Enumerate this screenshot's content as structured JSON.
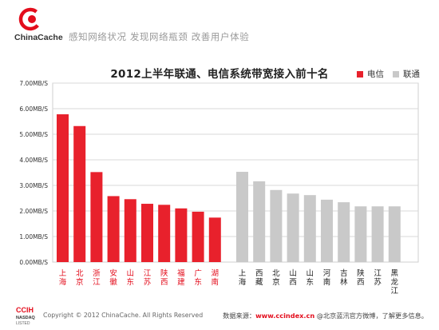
{
  "brand": {
    "name": "ChinaCache",
    "tagline": "感知网络状况 发现网络瓶颈 改善用户体验"
  },
  "legend": [
    {
      "label": "电信",
      "color": "#e8212c"
    },
    {
      "label": "联通",
      "color": "#c9c9c9"
    }
  ],
  "footer": {
    "mark_top": "CCIH",
    "mark_mid": "NASDAQ",
    "mark_bottom": "LISTED",
    "copyright": "Copyright © 2012 ChinaCache. All Rights Reserved",
    "source_prefix": "数据来源：",
    "source_url": "www.ccindex.cn",
    "source_suffix": " @北京蓝汛官方微博，了解更多信息。"
  },
  "colors": {
    "telecom": "#e8212c",
    "unicom": "#c9c9c9",
    "grid": "#dadada",
    "telecom_label": "#e30d1c",
    "unicom_label": "#222222"
  },
  "chart_data": {
    "type": "bar",
    "title": "2012上半年联通、电信系统带宽接入前十名",
    "ylim": [
      0,
      7
    ],
    "yticks": [
      "0.00MB/S",
      "1.00MB/S",
      "2.00MB/S",
      "3.00MB/S",
      "4.00MB/S",
      "5.00MB/S",
      "6.00MB/S",
      "7.00MB/S"
    ],
    "grid": true,
    "legend_position": "top-right",
    "series": [
      {
        "name": "电信",
        "color": "#e8212c",
        "categories": [
          "上海",
          "北京",
          "浙江",
          "安徽",
          "山东",
          "江苏",
          "陕西",
          "福建",
          "广东",
          "湖南"
        ],
        "values": [
          5.78,
          5.32,
          3.52,
          2.58,
          2.46,
          2.28,
          2.24,
          2.1,
          1.97,
          1.74
        ]
      },
      {
        "name": "联通",
        "color": "#c9c9c9",
        "categories": [
          "上海",
          "西藏",
          "北京",
          "山西",
          "山东",
          "河南",
          "吉林",
          "陕西",
          "江苏",
          "黑龙江"
        ],
        "values": [
          3.53,
          3.16,
          2.82,
          2.68,
          2.62,
          2.44,
          2.34,
          2.18,
          2.18,
          2.18
        ]
      }
    ]
  }
}
